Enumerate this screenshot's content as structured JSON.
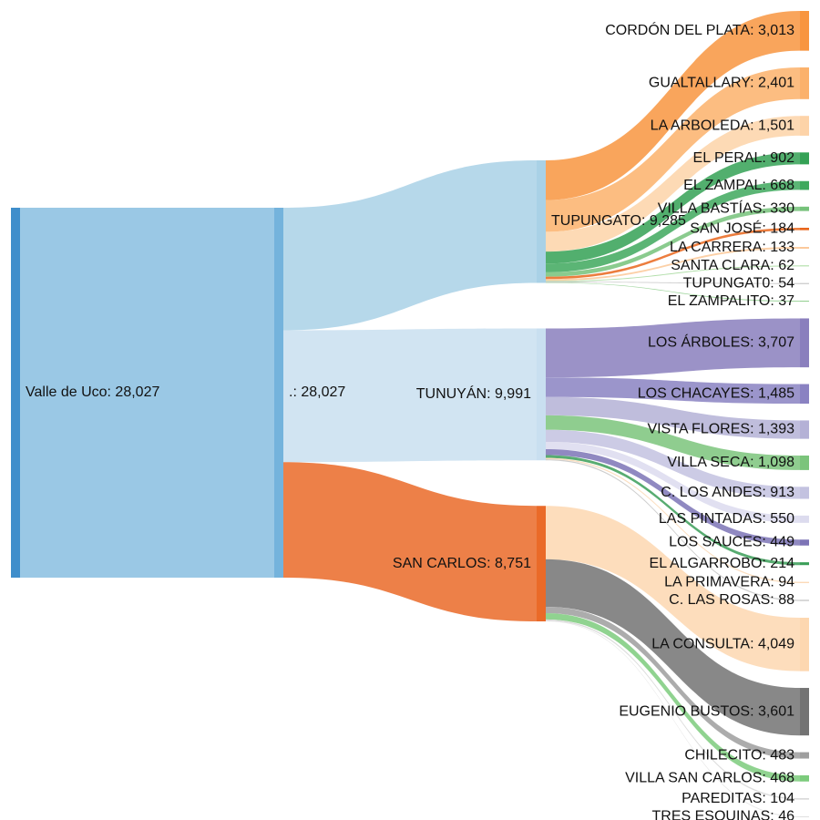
{
  "chart_data": {
    "type": "sankey",
    "columns": [
      [
        "valle"
      ],
      [
        "dot"
      ],
      [
        "tupungato",
        "tunuyan",
        "sancarlos"
      ],
      [
        "cordon",
        "gualtallary",
        "arboleda",
        "elperal",
        "zampal",
        "bastias",
        "sanjose",
        "carrera",
        "santaclara",
        "tupungat0",
        "zampalito",
        "arboles",
        "chacayes",
        "vistaflores",
        "villaseca",
        "candes",
        "pintadas",
        "sauces",
        "algarrobo",
        "primavera",
        "crosas",
        "consulta",
        "bustos",
        "chilecito",
        "vsc",
        "pareditas",
        "tres"
      ]
    ],
    "nodes": [
      {
        "id": "valle",
        "name": "Valle de Uco",
        "value": 28027,
        "color": "#3f8ecb",
        "flow_color": "#9ac8e5",
        "label_side": "right"
      },
      {
        "id": "dot",
        "name": ".",
        "value": 28027,
        "color": "#74b3dc",
        "label_side": "right"
      },
      {
        "id": "tupungato",
        "name": "TUPUNGATO",
        "value": 9285,
        "color": "#a9d1e6",
        "label_side": "right"
      },
      {
        "id": "tunuyan",
        "name": "TUNUYÁN",
        "value": 9991,
        "color": "#c9dff0",
        "label_side": "left"
      },
      {
        "id": "sancarlos",
        "name": "SAN CARLOS",
        "value": 8751,
        "color": "#ea6a28",
        "label_side": "left"
      },
      {
        "id": "cordon",
        "name": "CORDÓN DEL PLATA",
        "value": 3013,
        "color": "#f8953f"
      },
      {
        "id": "gualtallary",
        "name": "GUALTALLARY",
        "value": 2401,
        "color": "#fbb16b"
      },
      {
        "id": "arboleda",
        "name": "LA ARBOLEDA",
        "value": 1501,
        "color": "#fdd3a8"
      },
      {
        "id": "elperal",
        "name": "EL PERAL",
        "value": 902,
        "color": "#34a155"
      },
      {
        "id": "zampal",
        "name": "EL ZAMPAL",
        "value": 668,
        "color": "#3ea85d"
      },
      {
        "id": "bastias",
        "name": "VILLA BASTÍAS",
        "value": 330,
        "color": "#76c27a"
      },
      {
        "id": "sanjose",
        "name": "SAN JOSÉ",
        "value": 184,
        "color": "#e9661c"
      },
      {
        "id": "carrera",
        "name": "LA CARRERA",
        "value": 133,
        "color": "#fbc898"
      },
      {
        "id": "santaclara",
        "name": "SANTA CLARA",
        "value": 62,
        "color": "#a6d99c"
      },
      {
        "id": "tupungat0",
        "name": "TUPUNGAT0",
        "value": 54,
        "color": "#bdbdbd"
      },
      {
        "id": "zampalito",
        "name": "EL ZAMPALITO",
        "value": 37,
        "color": "#8ccd8a"
      },
      {
        "id": "arboles",
        "name": "LOS ÁRBOLES",
        "value": 3707,
        "color": "#8a7fbd"
      },
      {
        "id": "chacayes",
        "name": "LOS CHACAYES",
        "value": 1485,
        "color": "#8a82c2"
      },
      {
        "id": "vistaflores",
        "name": "VISTA FLORES",
        "value": 1393,
        "color": "#b4b1d6"
      },
      {
        "id": "villaseca",
        "name": "VILLA SECA",
        "value": 1098,
        "color": "#7bc47b"
      },
      {
        "id": "candes",
        "name": "C. LOS ANDES",
        "value": 913,
        "color": "#c3c2e0"
      },
      {
        "id": "pintadas",
        "name": "LAS PINTADAS",
        "value": 550,
        "color": "#dcdbee"
      },
      {
        "id": "sauces",
        "name": "LOS SAUCES",
        "value": 449,
        "color": "#7d74b6"
      },
      {
        "id": "algarrobo",
        "name": "EL ALGARROBO",
        "value": 214,
        "color": "#3b9e58"
      },
      {
        "id": "primavera",
        "name": "LA PRIMAVERA",
        "value": 94,
        "color": "#fcd9b6"
      },
      {
        "id": "crosas",
        "name": "C. LAS ROSAS",
        "value": 88,
        "color": "#c4c4c4"
      },
      {
        "id": "consulta",
        "name": "LA CONSULTA",
        "value": 4049,
        "color": "#fdd7b0"
      },
      {
        "id": "bustos",
        "name": "EUGENIO BUSTOS",
        "value": 3601,
        "color": "#737373"
      },
      {
        "id": "chilecito",
        "name": "CHILECITO",
        "value": 483,
        "color": "#9e9e9e"
      },
      {
        "id": "vsc",
        "name": "VILLA SAN CARLOS",
        "value": 468,
        "color": "#7ccb7c"
      },
      {
        "id": "pareditas",
        "name": "PAREDITAS",
        "value": 104,
        "color": "#d6d6d6"
      },
      {
        "id": "tres",
        "name": "TRES ESQUINAS",
        "value": 46,
        "color": "#e0e0e0"
      }
    ],
    "links": [
      {
        "source": "valle",
        "target": "dot",
        "value": 28027
      },
      {
        "source": "dot",
        "target": "tupungato",
        "value": 9285
      },
      {
        "source": "dot",
        "target": "tunuyan",
        "value": 9991
      },
      {
        "source": "dot",
        "target": "sancarlos",
        "value": 8751
      },
      {
        "source": "tupungato",
        "target": "cordon",
        "value": 3013
      },
      {
        "source": "tupungato",
        "target": "gualtallary",
        "value": 2401
      },
      {
        "source": "tupungato",
        "target": "arboleda",
        "value": 1501
      },
      {
        "source": "tupungato",
        "target": "elperal",
        "value": 902
      },
      {
        "source": "tupungato",
        "target": "zampal",
        "value": 668
      },
      {
        "source": "tupungato",
        "target": "bastias",
        "value": 330
      },
      {
        "source": "tupungato",
        "target": "sanjose",
        "value": 184
      },
      {
        "source": "tupungato",
        "target": "carrera",
        "value": 133
      },
      {
        "source": "tupungato",
        "target": "santaclara",
        "value": 62
      },
      {
        "source": "tupungato",
        "target": "tupungat0",
        "value": 54
      },
      {
        "source": "tupungato",
        "target": "zampalito",
        "value": 37
      },
      {
        "source": "tunuyan",
        "target": "arboles",
        "value": 3707
      },
      {
        "source": "tunuyan",
        "target": "chacayes",
        "value": 1485
      },
      {
        "source": "tunuyan",
        "target": "vistaflores",
        "value": 1393
      },
      {
        "source": "tunuyan",
        "target": "villaseca",
        "value": 1098
      },
      {
        "source": "tunuyan",
        "target": "candes",
        "value": 913
      },
      {
        "source": "tunuyan",
        "target": "pintadas",
        "value": 550
      },
      {
        "source": "tunuyan",
        "target": "sauces",
        "value": 449
      },
      {
        "source": "tunuyan",
        "target": "algarrobo",
        "value": 214
      },
      {
        "source": "tunuyan",
        "target": "primavera",
        "value": 94
      },
      {
        "source": "tunuyan",
        "target": "crosas",
        "value": 88
      },
      {
        "source": "sancarlos",
        "target": "consulta",
        "value": 4049
      },
      {
        "source": "sancarlos",
        "target": "bustos",
        "value": 3601
      },
      {
        "source": "sancarlos",
        "target": "chilecito",
        "value": 483
      },
      {
        "source": "sancarlos",
        "target": "vsc",
        "value": 468
      },
      {
        "source": "sancarlos",
        "target": "pareditas",
        "value": 104
      },
      {
        "source": "sancarlos",
        "target": "tres",
        "value": 46
      }
    ]
  }
}
